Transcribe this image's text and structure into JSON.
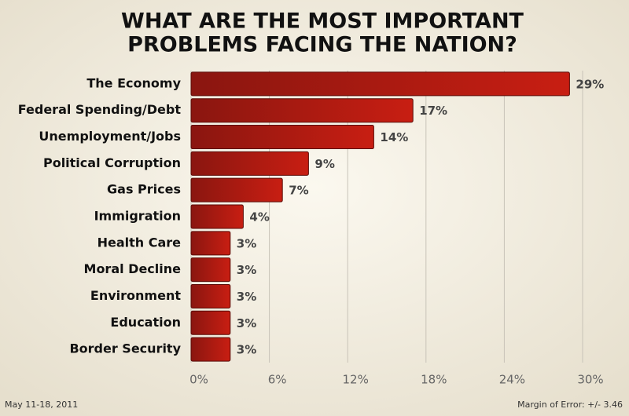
{
  "chart_data": {
    "type": "bar",
    "orientation": "horizontal",
    "title": [
      "WHAT ARE THE MOST IMPORTANT",
      "PROBLEMS FACING THE NATION?"
    ],
    "categories": [
      "The Economy",
      "Federal Spending/Debt",
      "Unemployment/Jobs",
      "Political Corruption",
      "Gas Prices",
      "Immigration",
      "Health Care",
      "Moral Decline",
      "Environment",
      "Education",
      "Border Security"
    ],
    "values": [
      29,
      17,
      14,
      9,
      7,
      4,
      3,
      3,
      3,
      3,
      3
    ],
    "value_labels": [
      "29%",
      "17%",
      "14%",
      "9%",
      "7%",
      "4%",
      "3%",
      "3%",
      "3%",
      "3%",
      "3%"
    ],
    "color": "#b01a10",
    "xlim": [
      0,
      30
    ],
    "xticks": [
      {
        "value": 0,
        "label": "0%"
      },
      {
        "value": 6,
        "label": "6%"
      },
      {
        "value": 12,
        "label": "12%"
      },
      {
        "value": 18,
        "label": "18%"
      },
      {
        "value": 24,
        "label": "24%"
      },
      {
        "value": 30,
        "label": "30%"
      }
    ],
    "grid": true,
    "footnote_left": "May 11-18, 2011",
    "footnote_right": "Margin of Error: +/- 3.46"
  }
}
